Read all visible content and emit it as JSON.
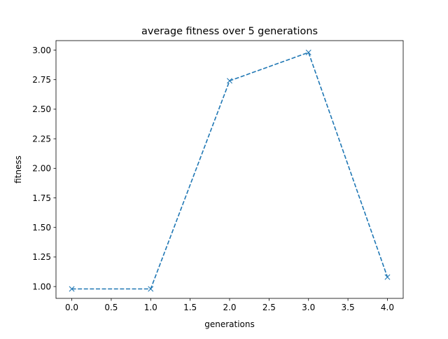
{
  "chart_data": {
    "type": "line",
    "title": "average fitness over 5 generations",
    "xlabel": "generations",
    "ylabel": "fitness",
    "xlim": [
      -0.2,
      4.2
    ],
    "ylim": [
      0.9,
      3.08
    ],
    "xticks": [
      0.0,
      0.5,
      1.0,
      1.5,
      2.0,
      2.5,
      3.0,
      3.5,
      4.0
    ],
    "xtick_labels": [
      "0.0",
      "0.5",
      "1.0",
      "1.5",
      "2.0",
      "2.5",
      "3.0",
      "3.5",
      "4.0"
    ],
    "yticks": [
      1.0,
      1.25,
      1.5,
      1.75,
      2.0,
      2.25,
      2.5,
      2.75,
      3.0
    ],
    "ytick_labels": [
      "1.00",
      "1.25",
      "1.50",
      "1.75",
      "2.00",
      "2.25",
      "2.50",
      "2.75",
      "3.00"
    ],
    "grid": false,
    "series": [
      {
        "x": [
          0,
          1,
          2,
          3,
          4
        ],
        "values": [
          0.98,
          0.98,
          2.74,
          2.98,
          1.08
        ],
        "color": "#1f77b4",
        "line_style": "dashed",
        "marker": "x"
      }
    ]
  }
}
